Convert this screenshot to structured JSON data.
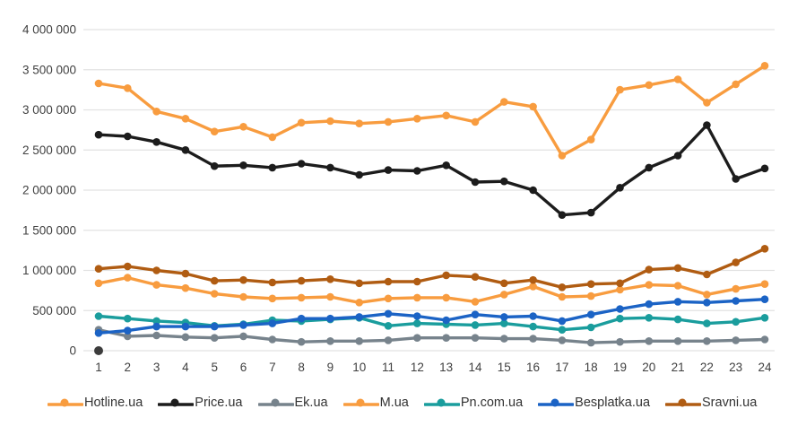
{
  "chart_data": {
    "type": "line",
    "title": "",
    "xlabel": "",
    "ylabel": "",
    "x": [
      1,
      2,
      3,
      4,
      5,
      6,
      7,
      8,
      9,
      10,
      11,
      12,
      13,
      14,
      15,
      16,
      17,
      18,
      19,
      20,
      21,
      22,
      23,
      24
    ],
    "x_tick_labels": [
      "1",
      "2",
      "3",
      "4",
      "5",
      "6",
      "7",
      "8",
      "9",
      "10",
      "11",
      "12",
      "13",
      "14",
      "15",
      "16",
      "17",
      "18",
      "19",
      "20",
      "21",
      "22",
      "23",
      "24"
    ],
    "y_axis": {
      "min": 0,
      "max": 4000000,
      "step": 500000
    },
    "y_tick_labels": [
      "0",
      "500 000",
      "1 000 000",
      "1 500 000",
      "2 000 000",
      "2 500 000",
      "3 000 000",
      "3 500 000",
      "4 000 000"
    ],
    "grid": true,
    "legend_position": "bottom",
    "series": [
      {
        "name": "Hotline.ua",
        "color": "#F89C3F",
        "values": [
          3330000,
          3270000,
          2980000,
          2890000,
          2730000,
          2790000,
          2660000,
          2840000,
          2860000,
          2830000,
          2850000,
          2890000,
          2930000,
          2850000,
          3100000,
          3040000,
          2430000,
          2630000,
          3250000,
          3310000,
          3380000,
          3090000,
          3320000,
          3550000
        ]
      },
      {
        "name": "Price.ua",
        "color": "#1C1C1C",
        "values": [
          2690000,
          2670000,
          2600000,
          2500000,
          2300000,
          2310000,
          2280000,
          2330000,
          2280000,
          2190000,
          2250000,
          2240000,
          2310000,
          2100000,
          2110000,
          2000000,
          1690000,
          1720000,
          2030000,
          2280000,
          2430000,
          2810000,
          2140000,
          2270000
        ]
      },
      {
        "name": "Ek.ua",
        "color": "#77838C",
        "values": [
          260000,
          180000,
          190000,
          170000,
          160000,
          180000,
          140000,
          110000,
          120000,
          120000,
          130000,
          160000,
          160000,
          160000,
          150000,
          150000,
          130000,
          100000,
          110000,
          120000,
          120000,
          120000,
          130000,
          140000
        ]
      },
      {
        "name": "M.ua",
        "color": "#F89C3F",
        "values": [
          840000,
          910000,
          820000,
          780000,
          710000,
          670000,
          650000,
          660000,
          670000,
          600000,
          650000,
          660000,
          660000,
          610000,
          700000,
          800000,
          670000,
          680000,
          760000,
          820000,
          810000,
          700000,
          770000,
          830000
        ]
      },
      {
        "name": "Pn.com.ua",
        "color": "#1A9D9D",
        "values": [
          430000,
          400000,
          370000,
          350000,
          310000,
          330000,
          380000,
          370000,
          390000,
          410000,
          310000,
          340000,
          330000,
          320000,
          340000,
          300000,
          260000,
          290000,
          400000,
          410000,
          390000,
          340000,
          360000,
          410000
        ]
      },
      {
        "name": "Besplatka.ua",
        "color": "#1B63C5",
        "values": [
          220000,
          250000,
          300000,
          300000,
          300000,
          320000,
          340000,
          400000,
          400000,
          420000,
          460000,
          430000,
          380000,
          450000,
          420000,
          430000,
          370000,
          450000,
          520000,
          580000,
          610000,
          600000,
          620000,
          640000
        ]
      },
      {
        "name": "Sravni.ua",
        "color": "#B05C12",
        "values": [
          1020000,
          1050000,
          1000000,
          960000,
          870000,
          880000,
          850000,
          870000,
          890000,
          840000,
          860000,
          860000,
          940000,
          920000,
          840000,
          880000,
          790000,
          830000,
          840000,
          1010000,
          1030000,
          950000,
          1100000,
          1270000
        ]
      }
    ],
    "extra_point": {
      "x": 1,
      "value": 0,
      "color": "#3C3C3C"
    }
  },
  "colors": {
    "background": "#FFFFFF",
    "gridline": "#E2E2E2",
    "axis_text": "#404040",
    "legend_text": "#333333"
  }
}
